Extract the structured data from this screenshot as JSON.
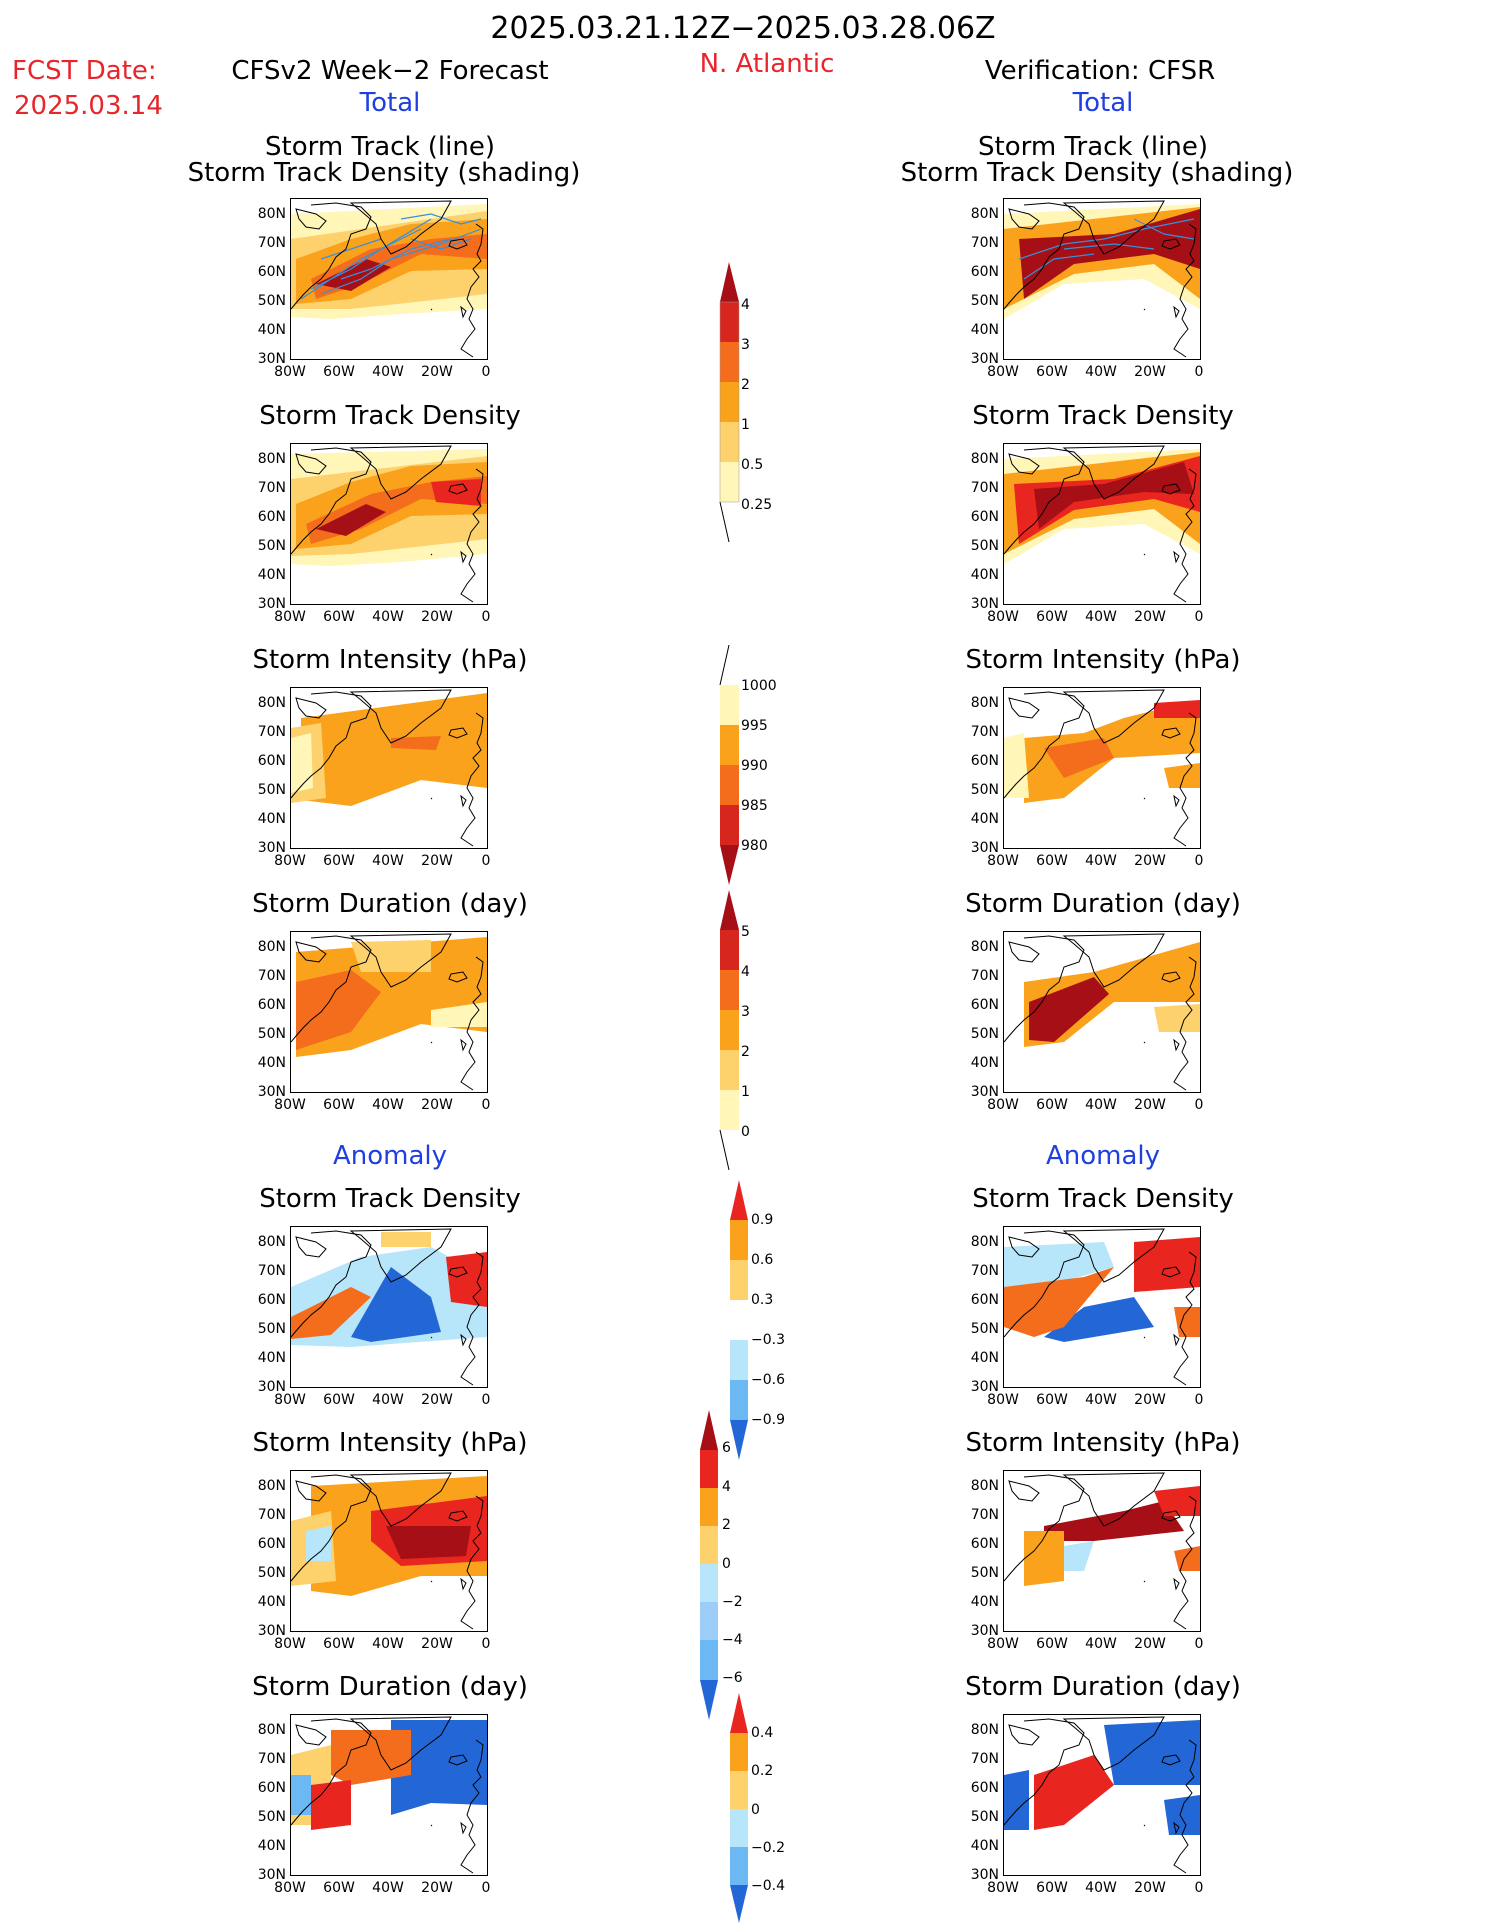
{
  "header": {
    "title": "2025.03.21.12Z−2025.03.28.06Z",
    "fcst_label": "FCST Date:",
    "fcst_date": "2025.03.14",
    "left_title": "CFSv2 Week−2 Forecast",
    "region": "N. Atlantic",
    "right_title": "Verification: CFSR",
    "total_label": "Total",
    "anomaly_label": "Anomaly"
  },
  "panels": {
    "track_line_1": "Storm Track (line)",
    "track_line_2": "Storm Track Density (shading)",
    "density": "Storm Track Density",
    "intensity": "Storm Intensity (hPa)",
    "duration": "Storm Duration (day)"
  },
  "axes": {
    "lat_ticks": [
      "80N",
      "70N",
      "60N",
      "50N",
      "40N",
      "30N"
    ],
    "lon_ticks": [
      "80W",
      "60W",
      "40W",
      "20W",
      "0"
    ]
  },
  "colorbars": {
    "density_total": [
      "4",
      "3",
      "2",
      "1",
      "0.5",
      "0.25"
    ],
    "intensity_total": [
      "1000",
      "995",
      "990",
      "985",
      "980"
    ],
    "duration_total": [
      "5",
      "4",
      "3",
      "2",
      "1",
      "0"
    ],
    "density_anom": [
      "0.9",
      "0.6",
      "0.3",
      "−0.3",
      "−0.6",
      "−0.9"
    ],
    "intensity_anom": [
      "6",
      "4",
      "2",
      "0",
      "−2",
      "−4",
      "−6"
    ],
    "duration_anom": [
      "0.4",
      "0.2",
      "0",
      "−0.2",
      "−0.4"
    ]
  },
  "colors": {
    "dark_red": "#a50f15",
    "red": "#e8251f",
    "orange_red": "#f46d1d",
    "orange": "#fba21c",
    "light_orange": "#fdd16c",
    "pale_yellow": "#fff6b8",
    "light_blue": "#b7e6fb",
    "mid_blue": "#6cb8f3",
    "blue": "#2367d6",
    "track_line": "#3a8fd9",
    "title_red": "#e8252b",
    "title_blue": "#1f3fe0"
  }
}
